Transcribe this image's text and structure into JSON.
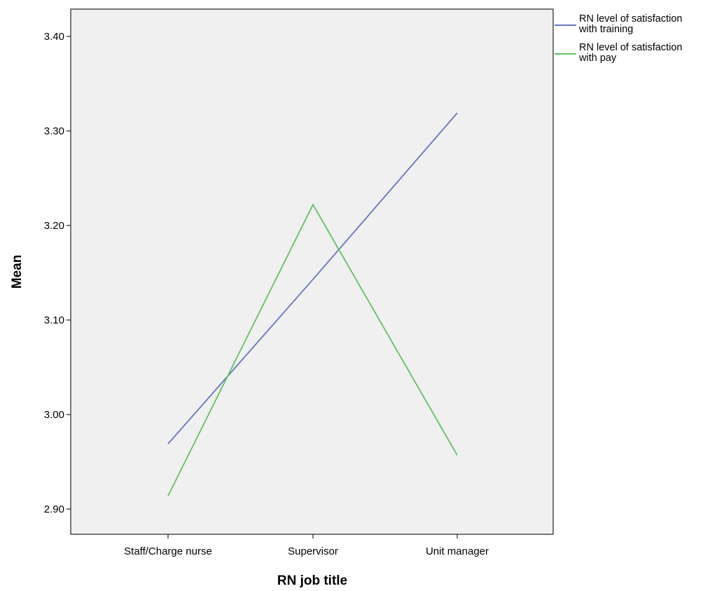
{
  "chart_data": {
    "type": "line",
    "title": "",
    "xlabel": "RN job title",
    "ylabel": "Mean",
    "categories": [
      "Staff/Charge nurse",
      "Supervisor",
      "Unit manager"
    ],
    "ylim": [
      2.87,
      3.43
    ],
    "yticks": [
      2.9,
      3.0,
      3.1,
      3.2,
      3.3,
      3.4
    ],
    "ytick_labels": [
      "2.90",
      "3.00",
      "3.10",
      "3.20",
      "3.30",
      "3.40"
    ],
    "grid": false,
    "legend_position": "top-right, outside plot",
    "plot_background": "#f0f0f0",
    "series": [
      {
        "name": "RN level of satisfaction with training",
        "legend_lines": [
          "RN level of satisfaction",
          "with training"
        ],
        "color": "#6674c4",
        "values": [
          2.969,
          3.143,
          3.319
        ]
      },
      {
        "name": "RN level of satisfaction with pay",
        "legend_lines": [
          "RN level of satisfaction",
          "with pay"
        ],
        "color": "#5ec45e",
        "values": [
          2.914,
          3.222,
          2.957
        ]
      }
    ]
  }
}
